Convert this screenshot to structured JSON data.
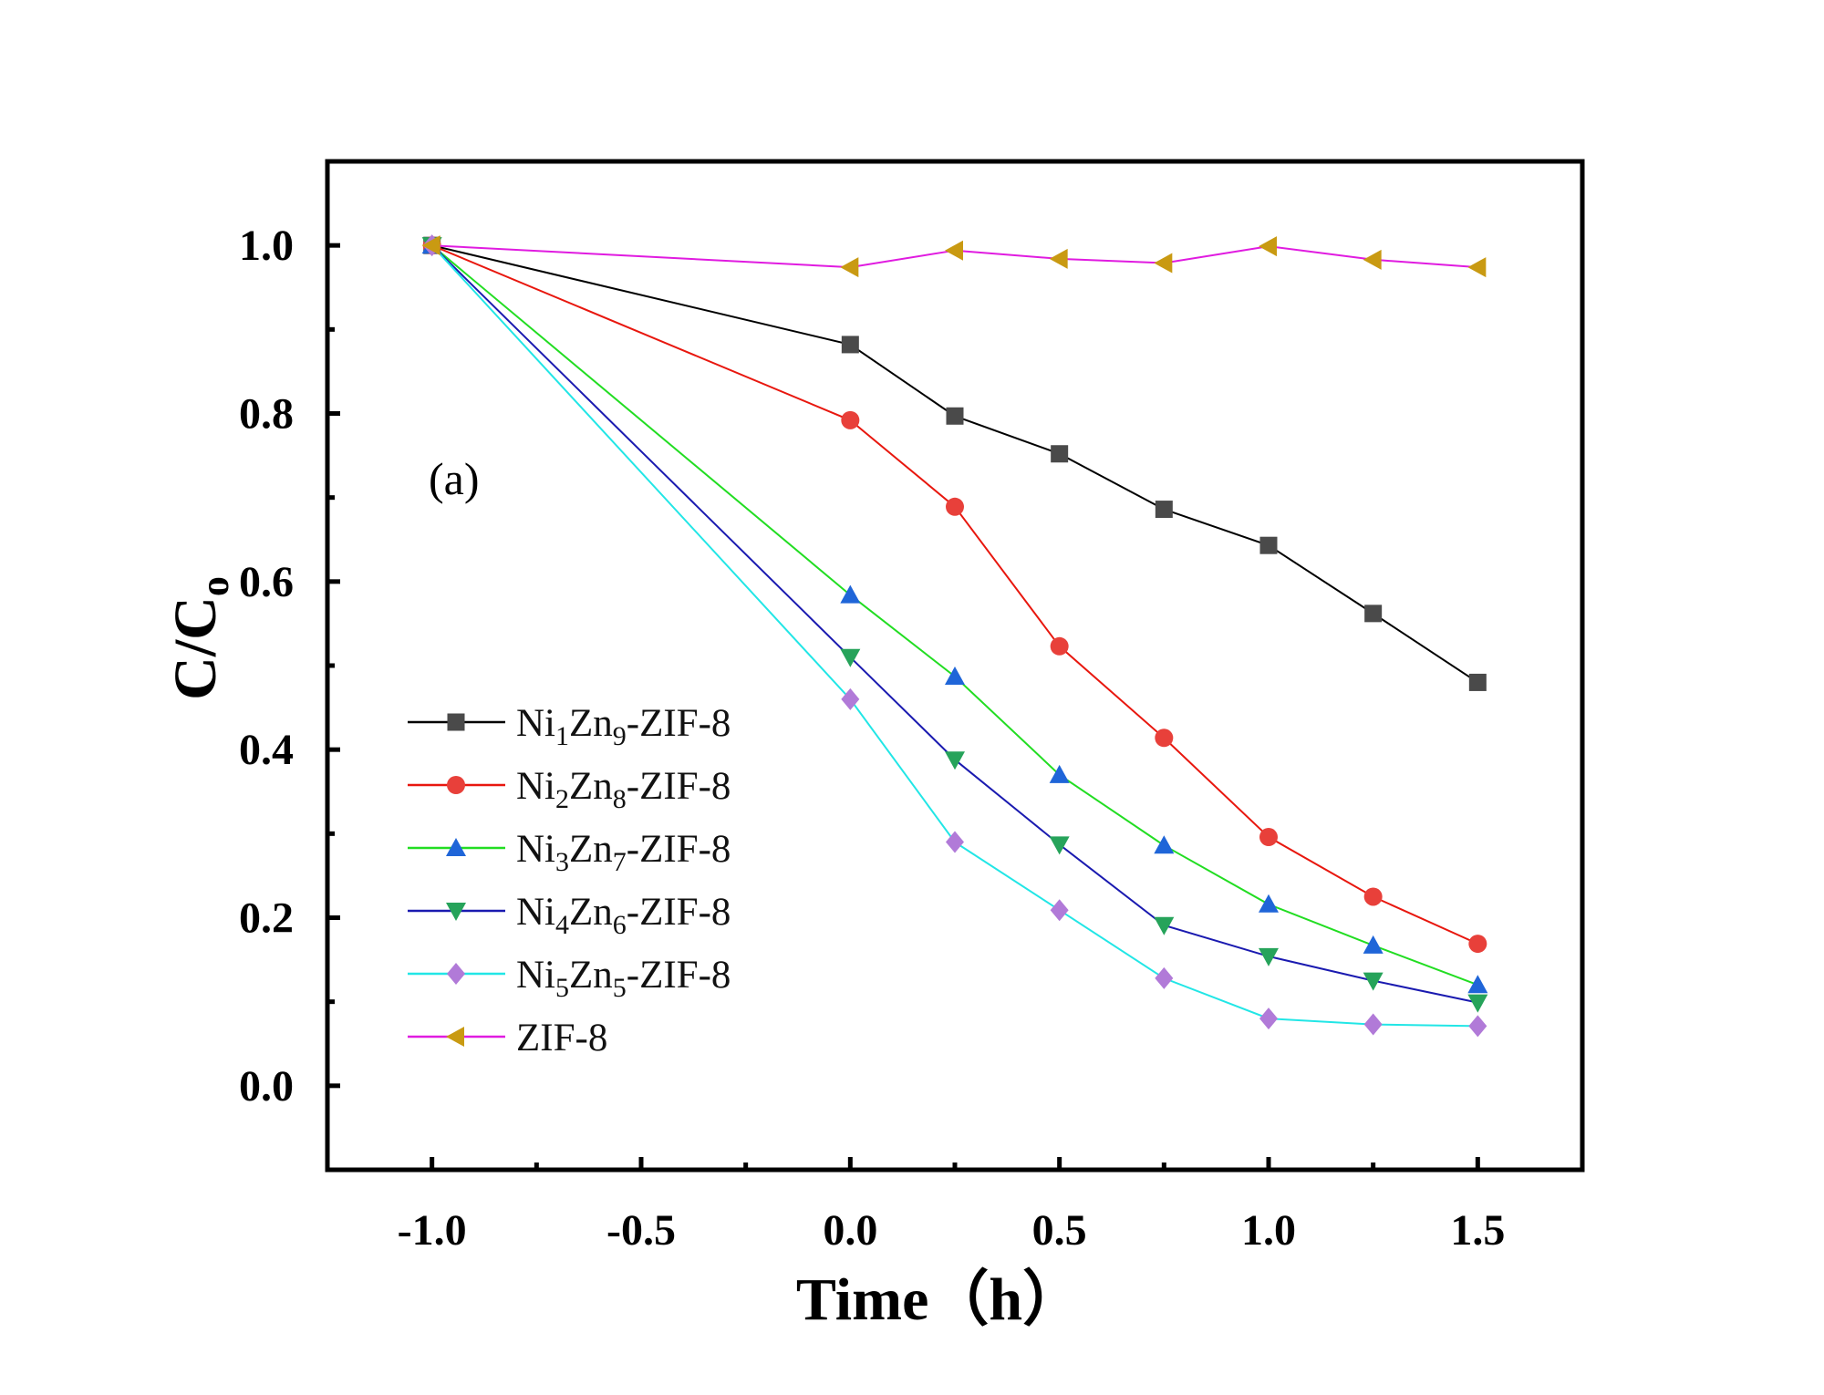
{
  "chart_data": {
    "type": "line",
    "title": "",
    "annotation": "(a)",
    "xlabel": "Time（h）",
    "ylabel": {
      "main": "C/C",
      "sub": "o"
    },
    "xlim": [
      -1.25,
      1.75
    ],
    "ylim": [
      -0.1,
      1.1
    ],
    "x_ticks": [
      -1.0,
      -0.5,
      0.0,
      0.5,
      1.0,
      1.5
    ],
    "x_tick_labels": [
      "-1.0",
      "-0.5",
      "0.0",
      "0.5",
      "1.0",
      "1.5"
    ],
    "x_minor_ticks": [
      -0.75,
      -0.25,
      0.25,
      0.75,
      1.25
    ],
    "y_ticks": [
      0.0,
      0.2,
      0.4,
      0.6,
      0.8,
      1.0
    ],
    "y_tick_labels": [
      "0.0",
      "0.2",
      "0.4",
      "0.6",
      "0.8",
      "1.0"
    ],
    "y_minor_ticks": [
      0.1,
      0.3,
      0.5,
      0.7,
      0.9
    ],
    "x": [
      -1.0,
      0.0,
      0.25,
      0.5,
      0.75,
      1.0,
      1.25,
      1.5
    ],
    "legend_position": "left-center",
    "series": [
      {
        "name": "Ni1Zn9-ZIF-8",
        "label_parts": [
          [
            "Ni",
            ""
          ],
          [
            "1",
            "sub"
          ],
          [
            "Zn",
            ""
          ],
          [
            "9",
            "sub"
          ],
          [
            "-ZIF-8",
            ""
          ]
        ],
        "line_color": "#000000",
        "marker_color": "#4a4a4a",
        "marker": "square",
        "values": [
          1.0,
          0.882,
          0.797,
          0.752,
          0.686,
          0.643,
          0.562,
          0.48
        ]
      },
      {
        "name": "Ni2Zn8-ZIF-8",
        "label_parts": [
          [
            "Ni",
            ""
          ],
          [
            "2",
            "sub"
          ],
          [
            "Zn",
            ""
          ],
          [
            "8",
            "sub"
          ],
          [
            "-ZIF-8",
            ""
          ]
        ],
        "line_color": "#e8170e",
        "marker_color": "#e8403a",
        "marker": "circle",
        "values": [
          1.0,
          0.792,
          0.689,
          0.523,
          0.414,
          0.296,
          0.225,
          0.169
        ]
      },
      {
        "name": "Ni3Zn7-ZIF-8",
        "label_parts": [
          [
            "Ni",
            ""
          ],
          [
            "3",
            "sub"
          ],
          [
            "Zn",
            ""
          ],
          [
            "7",
            "sub"
          ],
          [
            "-ZIF-8",
            ""
          ]
        ],
        "line_color": "#22dd22",
        "marker_color": "#1f65d8",
        "marker": "triangle-up",
        "values": [
          1.0,
          0.584,
          0.487,
          0.37,
          0.286,
          0.216,
          0.167,
          0.12
        ]
      },
      {
        "name": "Ni4Zn6-ZIF-8",
        "label_parts": [
          [
            "Ni",
            ""
          ],
          [
            "4",
            "sub"
          ],
          [
            "Zn",
            ""
          ],
          [
            "6",
            "sub"
          ],
          [
            "-ZIF-8",
            ""
          ]
        ],
        "line_color": "#1a1ab0",
        "marker_color": "#26a35a",
        "marker": "triangle-down",
        "values": [
          1.0,
          0.51,
          0.388,
          0.287,
          0.191,
          0.154,
          0.125,
          0.099
        ]
      },
      {
        "name": "Ni5Zn5-ZIF-8",
        "label_parts": [
          [
            "Ni",
            ""
          ],
          [
            "5",
            "sub"
          ],
          [
            "Zn",
            ""
          ],
          [
            "5",
            "sub"
          ],
          [
            "-ZIF-8",
            ""
          ]
        ],
        "line_color": "#22e6e6",
        "marker_color": "#b17ad8",
        "marker": "diamond",
        "values": [
          1.0,
          0.46,
          0.29,
          0.209,
          0.128,
          0.08,
          0.073,
          0.071
        ]
      },
      {
        "name": "ZIF-8",
        "label_parts": [
          [
            "ZIF-8",
            ""
          ]
        ],
        "line_color": "#e01be0",
        "marker_color": "#c99a12",
        "marker": "triangle-left",
        "values": [
          1.0,
          0.974,
          0.994,
          0.984,
          0.979,
          0.999,
          0.983,
          0.974
        ]
      }
    ]
  }
}
